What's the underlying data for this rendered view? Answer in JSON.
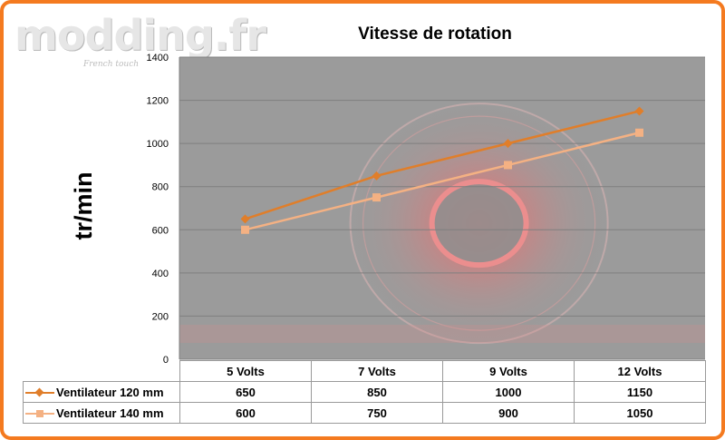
{
  "logo": {
    "text": "modding.fr",
    "tagline": "French touch"
  },
  "chart_data": {
    "type": "line",
    "title": "Vitesse de rotation",
    "xlabel": "",
    "ylabel": "tr/min",
    "categories": [
      "5 Volts",
      "7 Volts",
      "9 Volts",
      "12 Volts"
    ],
    "ylim": [
      0,
      1400
    ],
    "yticks": [
      "0",
      "200",
      "400",
      "600",
      "800",
      "1000",
      "1200",
      "1400"
    ],
    "grid": true,
    "legend": "data-table",
    "series": [
      {
        "name": "Ventilateur 120 mm",
        "values": [
          650,
          850,
          1000,
          1150
        ],
        "color": "#e07e2a",
        "marker": "diamond"
      },
      {
        "name": "Ventilateur 140 mm",
        "values": [
          600,
          750,
          900,
          1050
        ],
        "color": "#f4b183",
        "marker": "square"
      }
    ],
    "table": {
      "rows": [
        {
          "label": "Ventilateur 120 mm",
          "cells": [
            "650",
            "850",
            "1000",
            "1150"
          ]
        },
        {
          "label": "Ventilateur 140 mm",
          "cells": [
            "600",
            "750",
            "900",
            "1050"
          ]
        }
      ]
    }
  }
}
